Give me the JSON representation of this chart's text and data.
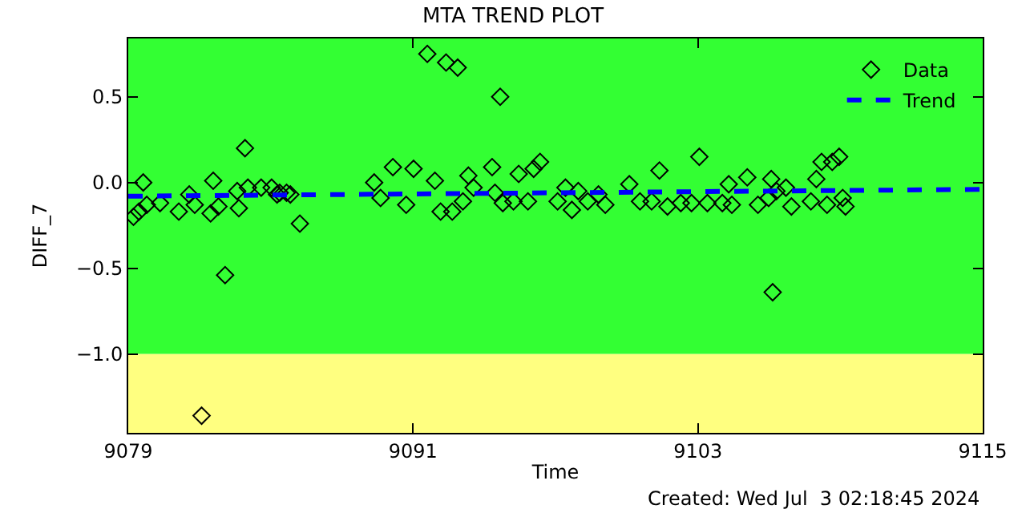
{
  "chart_data": {
    "type": "scatter",
    "title": "MTA TREND PLOT",
    "xlabel": "Time",
    "ylabel": "DIFF_7",
    "annotations": [
      "Created: Wed Jul  3 02:18:45 2024"
    ],
    "xlim": [
      9079,
      9115
    ],
    "xticks": [
      9079,
      9091,
      9103,
      9115
    ],
    "ylim": [
      -1.46,
      0.84
    ],
    "yticks": [
      {
        "value": -1.0,
        "label": "−1.0"
      },
      {
        "value": -0.5,
        "label": "−0.5"
      },
      {
        "value": 0.0,
        "label": "0.0"
      },
      {
        "value": 0.5,
        "label": "0.5"
      }
    ],
    "bands": [
      {
        "axis": "y",
        "from": -1.46,
        "to": -1.0,
        "color": "#ffff80"
      },
      {
        "axis": "y",
        "from": -1.0,
        "to": 0.84,
        "color": "#33ff33"
      }
    ],
    "grid": false,
    "legend": "top right",
    "series": [
      {
        "name": "Data",
        "marker": "diamond",
        "color": "#000000",
        "x": [
          9079.22,
          9079.45,
          9079.63,
          9079.78,
          9080.34,
          9081.13,
          9081.57,
          9081.8,
          9082.09,
          9082.58,
          9082.47,
          9082.8,
          9083.08,
          9083.59,
          9083.66,
          9083.92,
          9084.04,
          9084.6,
          9085.04,
          9085.27,
          9085.38,
          9085.67,
          9085.83,
          9086.23,
          9089.36,
          9089.63,
          9090.15,
          9090.71,
          9091.02,
          9091.6,
          9091.92,
          9092.16,
          9092.39,
          9092.65,
          9092.88,
          9093.1,
          9093.33,
          9093.55,
          9094.33,
          9094.45,
          9094.67,
          9094.78,
          9095.23,
          9095.45,
          9095.84,
          9096.08,
          9096.35,
          9097.09,
          9097.42,
          9097.69,
          9097.96,
          9098.36,
          9098.81,
          9099.1,
          9100.11,
          9100.56,
          9101.05,
          9101.38,
          9101.72,
          9102.28,
          9102.73,
          9103.06,
          9103.4,
          9104.03,
          9104.3,
          9104.43,
          9105.08,
          9105.53,
          9105.98,
          9106.09,
          9106.15,
          9106.31,
          9106.71,
          9106.94,
          9107.76,
          9107.99,
          9108.21,
          9108.44,
          9108.66,
          9108.95,
          9109.1,
          9109.22
        ],
        "values": [
          -0.2,
          -0.17,
          0.0,
          -0.13,
          -0.12,
          -0.17,
          -0.07,
          -0.13,
          -1.36,
          0.01,
          -0.18,
          -0.14,
          -0.54,
          -0.05,
          -0.15,
          0.2,
          -0.03,
          -0.03,
          -0.03,
          -0.07,
          -0.06,
          -0.06,
          -0.07,
          -0.24,
          0.0,
          -0.09,
          0.09,
          -0.13,
          0.08,
          0.75,
          0.01,
          -0.17,
          0.7,
          -0.17,
          0.67,
          -0.11,
          0.04,
          -0.03,
          0.09,
          -0.06,
          0.5,
          -0.12,
          -0.11,
          0.05,
          -0.11,
          0.08,
          0.12,
          -0.11,
          -0.03,
          -0.16,
          -0.05,
          -0.11,
          -0.07,
          -0.13,
          -0.01,
          -0.11,
          -0.11,
          0.07,
          -0.14,
          -0.12,
          -0.12,
          0.15,
          -0.12,
          -0.12,
          -0.01,
          -0.13,
          0.03,
          -0.13,
          -0.09,
          0.02,
          -0.64,
          -0.05,
          -0.03,
          -0.14,
          -0.11,
          0.02,
          0.12,
          -0.13,
          0.12,
          0.15,
          -0.09,
          -0.14
        ]
      },
      {
        "name": "Trend",
        "type": "line",
        "line_style": "dashed",
        "color": "#0000ff",
        "x": [
          9079,
          9115
        ],
        "values": [
          -0.08,
          -0.04
        ]
      }
    ]
  }
}
